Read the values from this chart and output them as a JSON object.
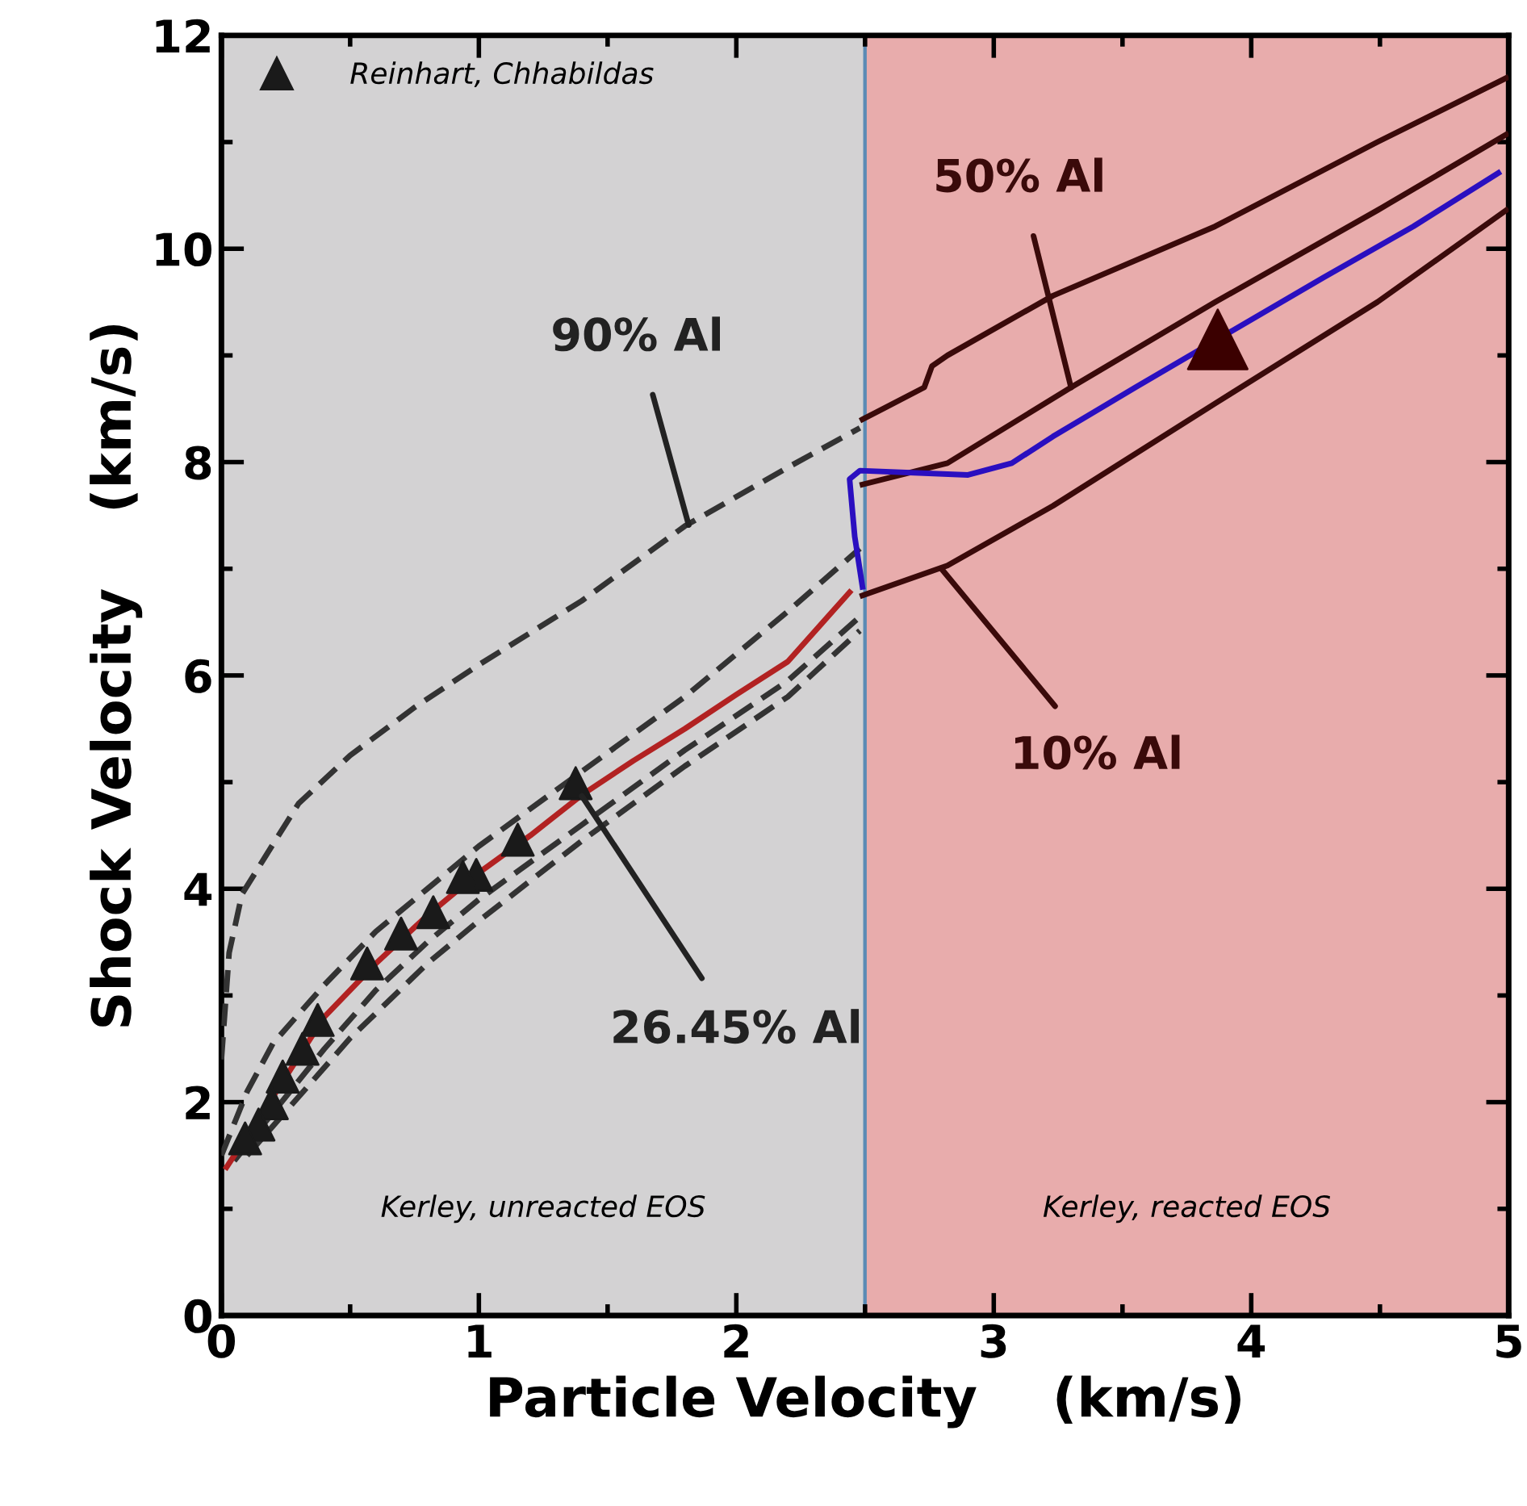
{
  "chart_data": {
    "type": "line",
    "xlabel": "Particle Velocity    (km/s)",
    "ylabel": "Shock Velocity    (km/s)",
    "xlim": [
      0,
      5
    ],
    "ylim": [
      0,
      12
    ],
    "xticks": [
      0,
      1,
      2,
      3,
      4,
      5
    ],
    "yticks": [
      0,
      2,
      4,
      6,
      8,
      10,
      12
    ],
    "grid": false,
    "legend": "top left",
    "series": [
      {
        "type": "line",
        "color": "#333333",
        "line_style": "dashed",
        "marker": "none",
        "x": [
          0.0,
          0.03,
          0.08,
          0.17,
          0.3,
          0.5,
          0.75,
          1.0,
          1.4,
          1.8,
          2.2,
          2.48
        ],
        "values": [
          2.4,
          3.4,
          3.95,
          4.3,
          4.8,
          5.25,
          5.7,
          6.1,
          6.7,
          7.4,
          7.95,
          8.32
        ]
      },
      {
        "type": "line",
        "color": "#333333",
        "line_style": "dashed",
        "marker": "none",
        "x": [
          0.0,
          0.1,
          0.2,
          0.4,
          0.6,
          0.8,
          1.0,
          1.4,
          1.8,
          2.2,
          2.48
        ],
        "values": [
          1.5,
          2.1,
          2.55,
          3.1,
          3.6,
          4.0,
          4.4,
          5.1,
          5.8,
          6.6,
          7.19
        ]
      },
      {
        "type": "line",
        "color": "#333333",
        "line_style": "dashed",
        "marker": "none",
        "x": [
          0.05,
          0.2,
          0.4,
          0.6,
          0.8,
          1.0,
          1.4,
          1.8,
          2.2,
          2.48
        ],
        "values": [
          1.45,
          1.9,
          2.5,
          3.05,
          3.5,
          3.9,
          4.6,
          5.3,
          5.95,
          6.55
        ]
      },
      {
        "type": "line",
        "color": "#333333",
        "line_style": "dashed",
        "marker": "none",
        "x": [
          0.1,
          0.3,
          0.5,
          0.8,
          1.0,
          1.4,
          1.8,
          2.2,
          2.48
        ],
        "values": [
          1.5,
          2.05,
          2.6,
          3.3,
          3.7,
          4.45,
          5.15,
          5.8,
          6.42
        ]
      },
      {
        "type": "line",
        "color": "#3a0a0a",
        "line_style": "solid",
        "marker": "none",
        "x": [
          2.49,
          2.73,
          2.76,
          2.82,
          3.23,
          3.86,
          4.49,
          4.99
        ],
        "values": [
          8.4,
          8.7,
          8.9,
          9.0,
          9.56,
          10.21,
          11.0,
          11.6
        ]
      },
      {
        "type": "line",
        "color": "#3a0a0a",
        "line_style": "solid",
        "marker": "none",
        "x": [
          2.49,
          2.82,
          3.3,
          3.86,
          4.49,
          4.99
        ],
        "values": [
          7.79,
          7.99,
          8.7,
          9.5,
          10.36,
          11.07
        ]
      },
      {
        "type": "line",
        "color": "#3a0a0a",
        "line_style": "solid",
        "marker": "none",
        "x": [
          2.49,
          2.82,
          3.23,
          3.86,
          4.49,
          4.99
        ],
        "values": [
          6.75,
          7.03,
          7.59,
          8.55,
          9.5,
          10.36
        ]
      },
      {
        "color": "#b22222",
        "line_style": "solid",
        "marker": "none",
        "x": [
          0.02,
          0.2,
          0.4,
          0.6,
          0.8,
          1.0,
          1.2,
          1.4,
          1.6,
          1.8,
          2.0,
          2.2,
          2.44
        ],
        "values": [
          1.39,
          2.05,
          2.8,
          3.3,
          3.75,
          4.15,
          4.5,
          4.88,
          5.2,
          5.5,
          5.82,
          6.13,
          6.78
        ]
      },
      {
        "color": "#2a0fc0",
        "line_style": "solid",
        "marker": "none",
        "x": [
          2.49,
          2.46,
          2.44,
          2.48,
          2.9,
          3.07,
          3.23,
          3.55,
          3.86,
          4.28,
          4.63,
          4.96
        ],
        "values": [
          6.83,
          7.3,
          7.84,
          7.92,
          7.88,
          7.99,
          8.24,
          8.7,
          null,
          9.73,
          10.21,
          10.71
        ]
      },
      {
        "type": "scatter",
        "name": "Reinhart, Chhabildas",
        "color": "#1a1a1a",
        "marker": "triangle",
        "x": [
          1.376,
          1.151,
          0.99,
          0.938,
          0.823,
          0.698,
          0.566,
          0.374,
          0.315,
          0.238,
          0.196,
          0.144,
          0.092
        ],
        "values": [
          4.99,
          4.46,
          4.13,
          4.11,
          3.78,
          3.58,
          3.3,
          2.77,
          2.5,
          2.24,
          1.99,
          1.79,
          1.66
        ]
      },
      {
        "type": "scatter",
        "color": "#3b0000",
        "marker": "triangle",
        "x": [
          3.87
        ],
        "values": [
          9.15
        ]
      }
    ],
    "bands": [
      {
        "axis": "x",
        "from": 0,
        "to": 2.5,
        "label": "Kerley, unreacted EOS",
        "color": "#d3d2d3"
      },
      {
        "axis": "x",
        "from": 2.5,
        "to": 5,
        "label": "Kerley, reacted EOS",
        "color": "#e8acac"
      }
    ],
    "annotations": [
      {
        "text": "90% Al",
        "x": 1.815,
        "y": 7.41
      },
      {
        "text": "50% Al",
        "x": 3.3,
        "y": 8.7
      },
      {
        "text": "10% Al",
        "x": 2.8,
        "y": 6.99
      },
      {
        "text": "26.45% Al",
        "x": 1.4,
        "y": 4.87
      }
    ]
  }
}
